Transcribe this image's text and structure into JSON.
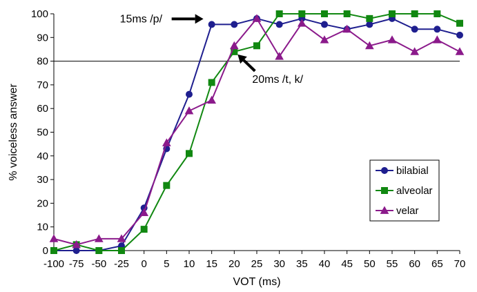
{
  "chart_data": {
    "type": "line",
    "title": "",
    "xlabel": "VOT (ms)",
    "ylabel": "% voiceless answer",
    "x": [
      -100,
      -75,
      -50,
      -25,
      0,
      5,
      10,
      15,
      20,
      25,
      30,
      35,
      40,
      45,
      50,
      55,
      60,
      65,
      70
    ],
    "x_tick_labels": [
      "-100",
      "-75",
      "-50",
      "-25",
      "0",
      "5",
      "10",
      "15",
      "20",
      "25",
      "30",
      "35",
      "40",
      "45",
      "50",
      "55",
      "60",
      "65",
      "70"
    ],
    "ylim": [
      0,
      100
    ],
    "y_ticks": [
      0,
      10,
      20,
      30,
      40,
      50,
      60,
      70,
      80,
      90,
      100
    ],
    "grid": false,
    "reference_line_y": 80,
    "legend_position": "right",
    "series": [
      {
        "name": "bilabial",
        "color": "#1f1f8f",
        "marker": "circle",
        "values": [
          0,
          0,
          0,
          2,
          18,
          43,
          66,
          95.5,
          95.5,
          98,
          95.5,
          98,
          95.5,
          93.5,
          95.5,
          98,
          93.5,
          93.5,
          91
        ]
      },
      {
        "name": "alveolar",
        "color": "#118811",
        "marker": "square",
        "values": [
          0,
          2.5,
          0,
          0,
          9,
          27.5,
          41,
          71,
          84,
          86.5,
          100,
          100,
          100,
          100,
          98,
          100,
          100,
          100,
          96
        ]
      },
      {
        "name": "velar",
        "color": "#8b1a8b",
        "marker": "triangle",
        "values": [
          5,
          2.5,
          5,
          5,
          16,
          45.5,
          59,
          63.5,
          86.5,
          98,
          82,
          96,
          89,
          93.5,
          86.5,
          89,
          84,
          89,
          84
        ]
      }
    ],
    "annotations": [
      {
        "text": "15ms /p/",
        "x_index": 7,
        "y": 95.5
      },
      {
        "text": "20ms /t, k/",
        "x_index": 8,
        "y": 84
      }
    ]
  }
}
